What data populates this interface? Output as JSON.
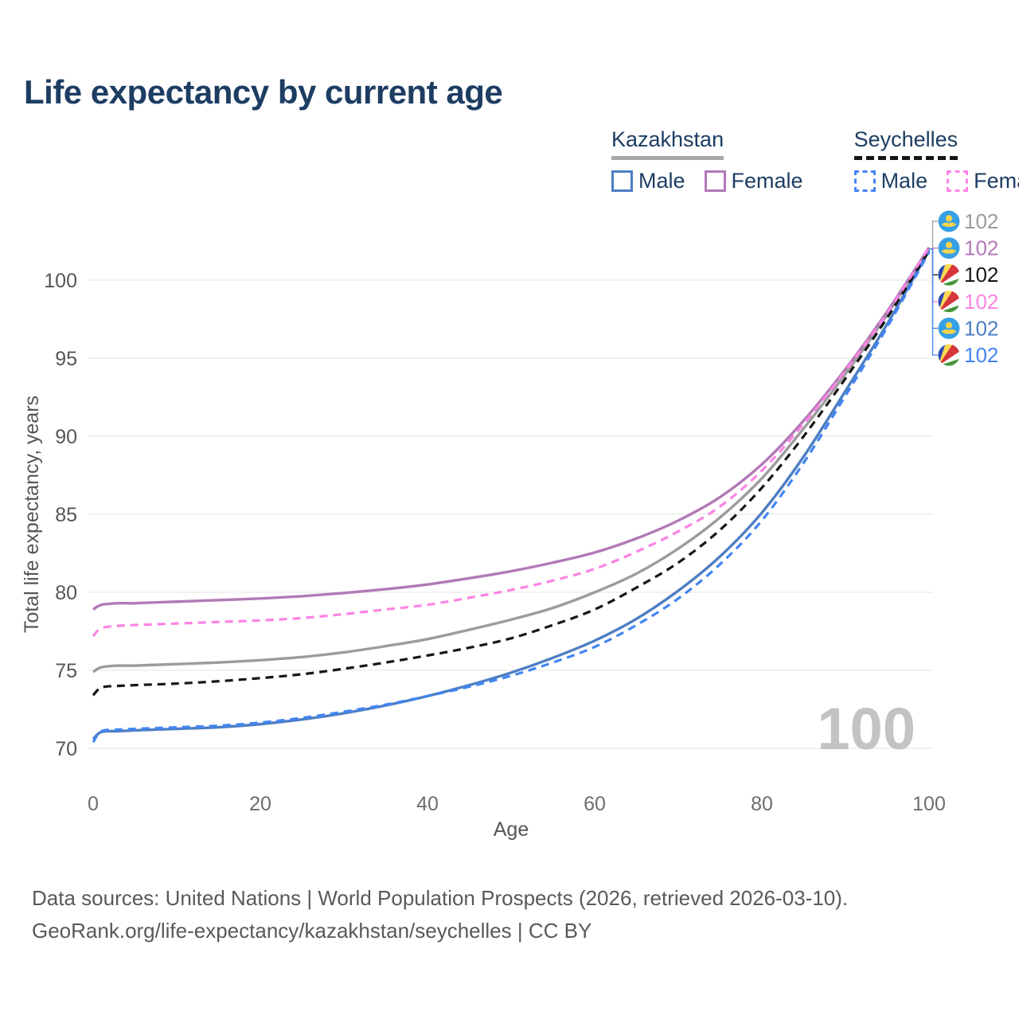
{
  "title": "Life expectancy by current age",
  "legend": {
    "groups": [
      {
        "country": "Kazakhstan",
        "underline_style": "solid",
        "underline_color": "#a8a8a8",
        "items": [
          {
            "label": "Male",
            "swatch_style": "solid",
            "color": "#4d7ec3"
          },
          {
            "label": "Female",
            "swatch_style": "solid",
            "color": "#b279b6"
          }
        ]
      },
      {
        "country": "Seychelles",
        "underline_style": "dashed",
        "underline_color": "#161616",
        "items": [
          {
            "label": "Male",
            "swatch_style": "dashed",
            "color": "#4285f4"
          },
          {
            "label": "Female",
            "swatch_style": "dashed",
            "color": "#fb84e4"
          }
        ]
      }
    ]
  },
  "chart_data": {
    "type": "line",
    "title": "Life expectancy by current age",
    "xlabel": "Age",
    "ylabel": "Total life expectancy, years",
    "x_ticks": [
      0,
      20,
      40,
      60,
      80,
      100
    ],
    "y_ticks": [
      70,
      75,
      80,
      85,
      90,
      95,
      100
    ],
    "xlim": [
      0,
      100
    ],
    "ylim": [
      69.5,
      103
    ],
    "grid": "horizontal-only",
    "legend_position": "top-right",
    "watermark": "100",
    "ages": [
      0,
      1,
      3,
      5,
      10,
      15,
      20,
      25,
      30,
      35,
      40,
      45,
      50,
      55,
      60,
      65,
      70,
      75,
      80,
      85,
      90,
      95,
      100
    ],
    "series": [
      {
        "name": "Kazakhstan Both sexes",
        "country": "Kazakhstan",
        "sex": "Both sexes",
        "color": "#9c9c9c",
        "dash": "solid",
        "flag": "kazakhstan",
        "end_label": "102",
        "values": [
          74.9,
          75.2,
          75.3,
          75.3,
          75.4,
          75.5,
          75.65,
          75.85,
          76.15,
          76.55,
          77.0,
          77.6,
          78.25,
          79.0,
          80.0,
          81.2,
          82.8,
          84.8,
          87.3,
          90.5,
          94.0,
          97.8,
          102.0
        ]
      },
      {
        "name": "Kazakhstan Female",
        "country": "Kazakhstan",
        "sex": "Female",
        "color": "#b279b6",
        "dash": "solid",
        "flag": "kazakhstan",
        "end_label": "102",
        "values": [
          78.9,
          79.2,
          79.3,
          79.3,
          79.4,
          79.5,
          79.6,
          79.75,
          79.95,
          80.2,
          80.5,
          80.9,
          81.35,
          81.9,
          82.55,
          83.45,
          84.6,
          86.1,
          88.2,
          91.0,
          94.3,
          98.0,
          102.1
        ]
      },
      {
        "name": "Seychelles Both sexes",
        "country": "Seychelles",
        "sex": "Both sexes",
        "color": "#161616",
        "dash": "dashed",
        "flag": "seychelles",
        "end_label": "102",
        "values": [
          73.4,
          73.9,
          74.0,
          74.05,
          74.15,
          74.3,
          74.5,
          74.75,
          75.1,
          75.5,
          75.95,
          76.45,
          77.05,
          77.9,
          78.9,
          80.3,
          81.9,
          84.0,
          86.7,
          90.0,
          93.7,
          97.6,
          101.9
        ]
      },
      {
        "name": "Seychelles Female",
        "country": "Seychelles",
        "sex": "Female",
        "color": "#fb84e4",
        "dash": "dashed",
        "flag": "seychelles",
        "end_label": "102",
        "values": [
          77.2,
          77.7,
          77.85,
          77.9,
          78.0,
          78.1,
          78.2,
          78.35,
          78.6,
          78.9,
          79.2,
          79.65,
          80.15,
          80.75,
          81.5,
          82.6,
          83.9,
          85.5,
          87.8,
          90.8,
          94.2,
          97.9,
          102.1
        ]
      },
      {
        "name": "Kazakhstan Male",
        "country": "Kazakhstan",
        "sex": "Male",
        "color": "#4d7ec3",
        "dash": "solid",
        "flag": "kazakhstan",
        "end_label": "102",
        "values": [
          70.6,
          71.05,
          71.1,
          71.15,
          71.25,
          71.35,
          71.55,
          71.85,
          72.25,
          72.75,
          73.35,
          74.05,
          74.85,
          75.8,
          76.9,
          78.3,
          80.1,
          82.3,
          85.1,
          88.7,
          92.9,
          97.2,
          101.9
        ]
      },
      {
        "name": "Seychelles Male",
        "country": "Seychelles",
        "sex": "Male",
        "color": "#4285f4",
        "dash": "dashed",
        "flag": "seychelles",
        "end_label": "102",
        "values": [
          70.4,
          71.1,
          71.2,
          71.25,
          71.35,
          71.45,
          71.65,
          71.95,
          72.35,
          72.8,
          73.35,
          73.95,
          74.65,
          75.5,
          76.5,
          77.9,
          79.6,
          81.8,
          84.6,
          88.3,
          92.6,
          97.0,
          101.8
        ]
      }
    ]
  },
  "colors": {
    "title_text": "#1d3d63",
    "legend_text": "#1d3d63",
    "axis_text": "#565656",
    "x_tick_text": "#6e6e6e",
    "grid": "#e9e9e9",
    "watermark": "#c3c3c3",
    "footer_text": "#58595b",
    "flag_kazakhstan_blue": "#36a0e6",
    "flag_kazakhstan_gold": "#f8d44a",
    "flag_seychelles_blue": "#2a49b0",
    "flag_seychelles_yellow": "#fcd94f",
    "flag_seychelles_red": "#d7353c",
    "flag_seychelles_white": "#ffffff",
    "flag_seychelles_green": "#47973f"
  },
  "footer": {
    "line1": "Data sources: United Nations | World Population Prospects (2026, retrieved 2026-03-10).",
    "line2": "GeoRank.org/life-expectancy/kazakhstan/seychelles | CC BY"
  }
}
